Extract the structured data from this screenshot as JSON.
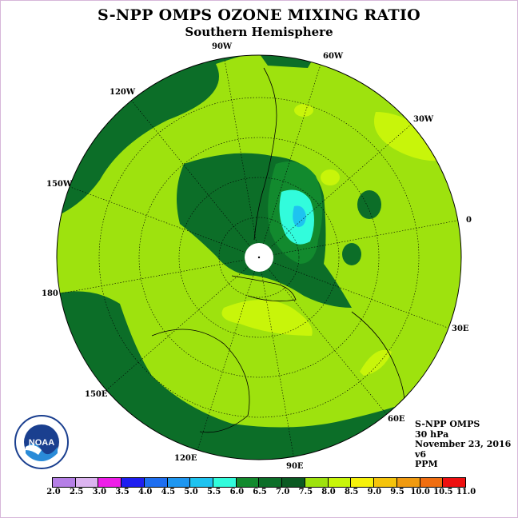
{
  "header": {
    "title": "S-NPP OMPS OZONE MIXING RATIO",
    "subtitle": "Southern Hemisphere"
  },
  "longitude_labels": [
    "90W",
    "60W",
    "30W",
    "0",
    "30E",
    "60E",
    "90E",
    "120E",
    "150E",
    "180",
    "150W",
    "120W"
  ],
  "info": {
    "instrument": "S-NPP OMPS",
    "level": "30 hPa",
    "date": "November 23, 2016",
    "version": "v6",
    "units": "PPM"
  },
  "colorbar": {
    "ticks": [
      "2.0",
      "2.5",
      "3.0",
      "3.5",
      "4.0",
      "4.5",
      "5.0",
      "5.5",
      "6.0",
      "6.5",
      "7.0",
      "7.5",
      "8.0",
      "8.5",
      "9.0",
      "9.5",
      "10.0",
      "10.5",
      "11.0"
    ],
    "colors": [
      "#b57fe6",
      "#dcb4f0",
      "#ee1ee8",
      "#1e1ef0",
      "#1e6ef0",
      "#1e96f0",
      "#1ec3f0",
      "#32fcdc",
      "#128a2e",
      "#0c6e28",
      "#0a5a22",
      "#9ee20e",
      "#c8f50a",
      "#f6f10a",
      "#f5c40c",
      "#f09a10",
      "#f06e10",
      "#ee1010",
      "#7a4a2a"
    ]
  },
  "logo": {
    "text": "NOAA"
  }
}
